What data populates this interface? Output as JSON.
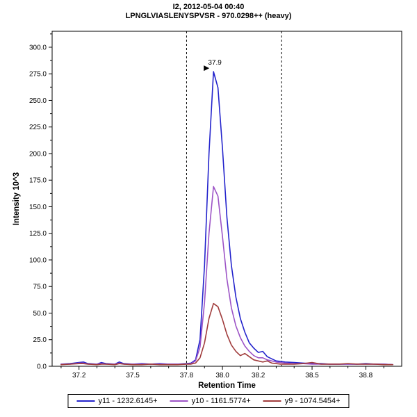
{
  "title": {
    "line1": "I2, 2012-05-04 00:40",
    "line2": "LPNGLVIASLENYSPVSR - 970.0298++ (heavy)"
  },
  "axes": {
    "x_label": "Retention Time",
    "y_label": "Intensity 10^3"
  },
  "chart_data": {
    "type": "line",
    "title": "I2, 2012-05-04 00:40 / LPNGLVIASLENYSPVSR - 970.0298++ (heavy)",
    "xlabel": "Retention Time",
    "ylabel": "Intensity 10^3",
    "xlim": [
      37.05,
      39.0
    ],
    "ylim": [
      0,
      315
    ],
    "grid": false,
    "legend_position": "bottom",
    "x_ticks": [
      37.2,
      37.5,
      37.8,
      38.0,
      38.2,
      38.5,
      38.8
    ],
    "x_tick_labels": [
      "37.2",
      "37.5",
      "37.8",
      "38.0",
      "38.2",
      "38.5",
      "38.8"
    ],
    "y_ticks": [
      0,
      25,
      50,
      75,
      100,
      125,
      150,
      175,
      200,
      225,
      250,
      275,
      300
    ],
    "y_tick_labels": [
      "0.0",
      "25.0",
      "50.0",
      "75.0",
      "100.0",
      "125.0",
      "150.0",
      "175.0",
      "200.0",
      "225.0",
      "250.0",
      "275.0",
      "300.0"
    ],
    "integration_boundaries": [
      37.8,
      38.33
    ],
    "peak_annotation": {
      "label": "37.9",
      "x": 37.95,
      "y": 277,
      "text_color": "#2323cc",
      "arrow_color": "#000000"
    },
    "x": [
      37.1,
      37.15,
      37.2,
      37.225,
      37.25,
      37.3,
      37.325,
      37.35,
      37.4,
      37.425,
      37.45,
      37.5,
      37.55,
      37.6,
      37.65,
      37.7,
      37.75,
      37.8,
      37.825,
      37.85,
      37.875,
      37.9,
      37.925,
      37.95,
      37.975,
      38.0,
      38.025,
      38.05,
      38.075,
      38.1,
      38.125,
      38.15,
      38.175,
      38.2,
      38.225,
      38.25,
      38.275,
      38.3,
      38.325,
      38.35,
      38.4,
      38.45,
      38.5,
      38.55,
      38.6,
      38.65,
      38.7,
      38.75,
      38.8,
      38.85,
      38.9,
      38.95
    ],
    "series": [
      {
        "name": "y11 - 1232.6145+",
        "color": "#2323cc",
        "values": [
          2,
          2.5,
          3.5,
          4,
          2.5,
          2,
          3.5,
          2.5,
          2,
          4,
          2.5,
          2,
          2.5,
          2,
          2.5,
          2,
          2,
          2.5,
          3,
          6,
          25,
          95,
          200,
          277,
          262,
          205,
          140,
          95,
          65,
          45,
          32,
          22,
          17,
          13,
          14,
          9,
          7,
          5,
          4.5,
          4,
          3.5,
          3,
          2.5,
          2.5,
          2,
          2,
          2,
          2,
          2.5,
          2,
          2,
          1.5
        ]
      },
      {
        "name": "y10 - 1161.5774+",
        "color": "#9c53c6",
        "values": [
          2,
          2,
          3,
          3,
          2,
          2,
          2.5,
          2,
          2,
          3,
          2,
          2,
          2,
          2,
          2,
          2,
          2,
          2,
          2.5,
          5,
          18,
          60,
          125,
          169,
          160,
          122,
          82,
          55,
          38,
          27,
          19,
          14,
          10,
          8,
          8,
          6,
          5,
          4,
          3.5,
          3,
          2.5,
          2.5,
          2,
          2,
          2,
          2,
          2,
          2,
          2,
          2,
          2,
          1.5
        ]
      },
      {
        "name": "y9 - 1074.5454+",
        "color": "#a03b3b",
        "values": [
          1.5,
          2,
          2.5,
          2.5,
          2,
          1.5,
          2,
          2,
          1.5,
          2.5,
          2,
          1.5,
          1.5,
          2,
          1.5,
          1.5,
          1.5,
          2,
          2,
          3,
          8,
          22,
          45,
          59,
          56,
          44,
          30,
          20,
          14,
          10,
          12,
          9,
          6,
          5,
          4,
          5,
          3,
          2.5,
          2,
          2,
          2,
          2.5,
          3.5,
          2,
          2,
          2,
          2.5,
          2,
          2,
          2,
          1.5,
          1.5
        ]
      }
    ]
  }
}
